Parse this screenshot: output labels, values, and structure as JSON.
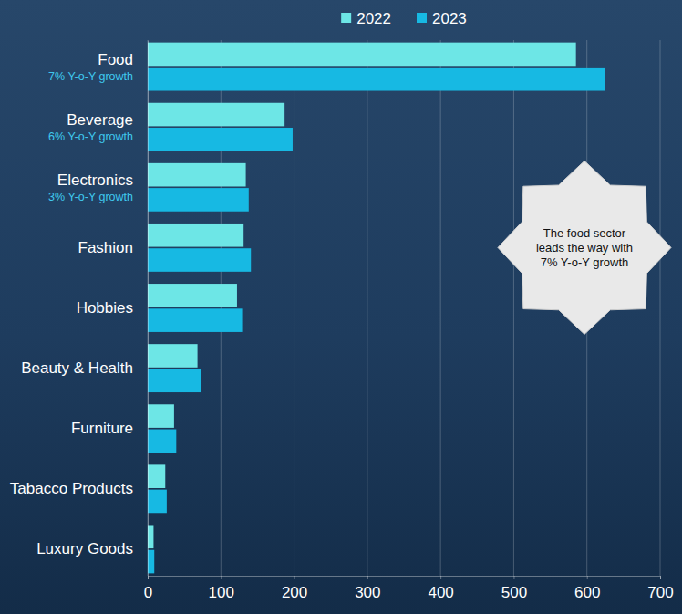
{
  "chart_data": {
    "type": "bar",
    "orientation": "horizontal",
    "categories": [
      "Food",
      "Beverage",
      "Electronics",
      "Fashion",
      "Hobbies",
      "Beauty & Health",
      "Furniture",
      "Tabacco Products",
      "Luxury Goods"
    ],
    "series": [
      {
        "name": "2022",
        "color": "#6de6e6",
        "values": [
          585,
          187,
          134,
          131,
          122,
          68,
          36,
          24,
          8
        ]
      },
      {
        "name": "2023",
        "color": "#17b9e3",
        "values": [
          625,
          198,
          138,
          141,
          129,
          73,
          39,
          26,
          9
        ]
      }
    ],
    "xlim": [
      0,
      700
    ],
    "xticks": [
      0,
      100,
      200,
      300,
      400,
      500,
      600,
      700
    ],
    "grid": true,
    "legend": "top",
    "annotations": [
      {
        "text": "7% Y-o-Y growth",
        "category": "Food"
      },
      {
        "text": "6% Y-o-Y growth",
        "category": "Beverage"
      },
      {
        "text": "3% Y-o-Y growth",
        "category": "Electronics"
      },
      {
        "text": "The food sector leads the way with 7% Y-o-Y growth"
      }
    ]
  }
}
